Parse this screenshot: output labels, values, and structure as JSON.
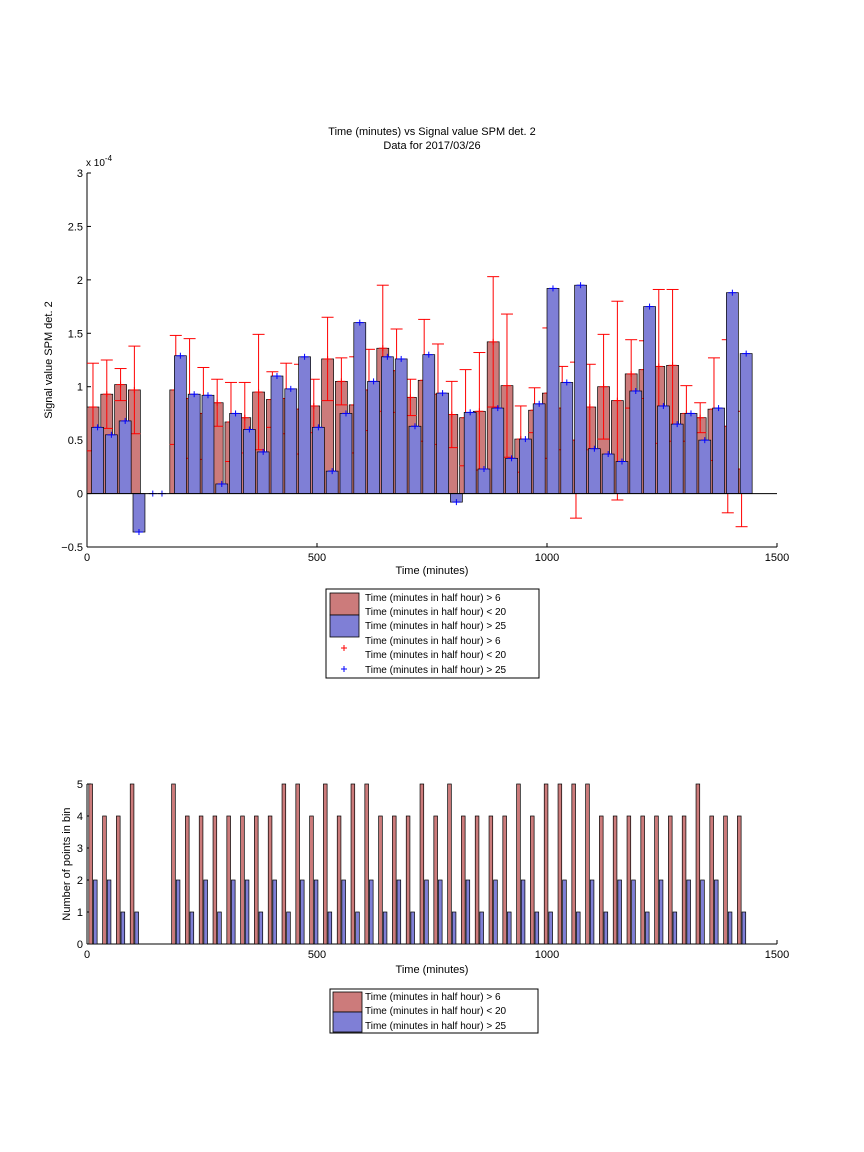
{
  "colors": {
    "red_fill": "#cc7b7b",
    "blue_fill": "#7f7fd6",
    "red_err": "#ff0000",
    "blue_err": "#0000ff",
    "axis": "#000000"
  },
  "chart_data": [
    {
      "type": "bar",
      "title": "Time (minutes) vs Signal value SPM det. 2",
      "subtitle": "Data for 2017/03/26",
      "xlabel": "Time (minutes)",
      "ylabel": "Signal value SPM det. 2",
      "exponent_label": "x 10",
      "exponent_power": "-4",
      "xlim": [
        0,
        1500
      ],
      "ylim": [
        -0.5,
        3
      ],
      "xticks": [
        0,
        500,
        1000,
        1500
      ],
      "yticks": [
        -0.5,
        0,
        0.5,
        1,
        1.5,
        2,
        2.5,
        3
      ],
      "ytick_labels": [
        "−0.5",
        "0",
        "0.5",
        "1",
        "1.5",
        "2",
        "2.5",
        "3"
      ],
      "legend_placement": "below",
      "legend": [
        "Time (minutes in half hour) > 6",
        "Time (minutes in half hour) < 20",
        "Time (minutes in half hour) > 25",
        "Time (minutes in half hour) > 6",
        "Time (minutes in half hour) < 20",
        "Time (minutes in half hour) > 25"
      ],
      "series": [
        {
          "color": "red",
          "x": [
            13,
            43,
            73,
            103,
            193,
            223,
            253,
            283,
            313,
            343,
            373,
            403,
            433,
            463,
            493,
            523,
            553,
            583,
            613,
            643,
            673,
            703,
            733,
            763,
            793,
            823,
            853,
            883,
            913,
            943,
            973,
            1003,
            1033,
            1063,
            1093,
            1123,
            1153,
            1183,
            1213,
            1243,
            1273,
            1303,
            1333,
            1363,
            1393,
            1423
          ],
          "values": [
            0.81,
            0.93,
            1.02,
            0.97,
            0.97,
            0.89,
            0.75,
            0.85,
            0.67,
            0.71,
            0.95,
            0.88,
            0.89,
            0.79,
            0.82,
            1.26,
            1.05,
            0.83,
            0.97,
            1.36,
            1.15,
            0.9,
            1.06,
            0.93,
            0.74,
            0.71,
            0.77,
            1.42,
            1.01,
            0.51,
            0.78,
            0.94,
            0.8,
            0.5,
            0.81,
            1.0,
            0.87,
            1.12,
            1.16,
            1.19,
            1.2,
            0.75,
            0.71,
            0.79,
            0.63,
            0.23
          ],
          "err": [
            0.41,
            0.32,
            0.15,
            0.41,
            0.51,
            0.56,
            0.43,
            0.22,
            0.37,
            0.33,
            0.54,
            0.26,
            0.33,
            0.42,
            0.25,
            0.39,
            0.22,
            0.45,
            0.38,
            0.59,
            0.39,
            0.17,
            0.57,
            0.47,
            0.31,
            0.45,
            0.55,
            0.61,
            0.67,
            0.31,
            0.21,
            0.61,
            0.39,
            0.73,
            0.4,
            0.49,
            0.93,
            0.32,
            0.27,
            0.72,
            0.71,
            0.26,
            0.14,
            0.48,
            0.81,
            0.54
          ]
        },
        {
          "color": "blue",
          "x": [
            23,
            53,
            83,
            113,
            143,
            163,
            203,
            233,
            263,
            293,
            323,
            353,
            383,
            413,
            443,
            473,
            503,
            533,
            563,
            593,
            623,
            653,
            683,
            713,
            743,
            773,
            803,
            833,
            863,
            893,
            923,
            953,
            983,
            1013,
            1043,
            1073,
            1103,
            1133,
            1163,
            1193,
            1223,
            1253,
            1283,
            1313,
            1343,
            1373,
            1403,
            1433
          ],
          "values": [
            0.62,
            0.55,
            0.68,
            -0.36,
            0.0,
            0.0,
            1.29,
            0.93,
            0.92,
            0.09,
            0.75,
            0.6,
            0.39,
            1.1,
            0.98,
            1.28,
            0.62,
            0.21,
            0.75,
            1.6,
            1.05,
            1.28,
            1.26,
            0.63,
            1.3,
            0.94,
            -0.08,
            0.76,
            0.23,
            0.8,
            0.33,
            0.51,
            0.84,
            1.92,
            1.04,
            1.95,
            0.42,
            0.37,
            0.3,
            0.96,
            1.75,
            0.82,
            0.65,
            0.75,
            0.5,
            0.8,
            1.88,
            1.31
          ]
        }
      ],
      "series_notes": "Each red and blue series is drawn as bars with vertical error bars (plus markers at bar tops)."
    },
    {
      "type": "bar",
      "xlabel": "Time (minutes)",
      "ylabel": "Number of points in bin",
      "xlim": [
        0,
        1500
      ],
      "ylim": [
        0,
        5
      ],
      "xticks": [
        0,
        500,
        1000,
        1500
      ],
      "yticks": [
        0,
        1,
        2,
        3,
        4,
        5
      ],
      "legend_placement": "below",
      "legend": [
        "Time (minutes in half hour) > 6",
        "Time (minutes in half hour) < 20",
        "Time (minutes in half hour) > 25"
      ],
      "series": [
        {
          "color": "red",
          "x": [
            8,
            38,
            68,
            98,
            188,
            218,
            248,
            278,
            308,
            338,
            368,
            398,
            428,
            458,
            488,
            518,
            548,
            578,
            608,
            638,
            668,
            698,
            728,
            758,
            788,
            818,
            848,
            878,
            908,
            938,
            968,
            998,
            1028,
            1058,
            1088,
            1118,
            1148,
            1178,
            1208,
            1238,
            1268,
            1298,
            1328,
            1358,
            1388,
            1418
          ],
          "values": [
            5,
            4,
            4,
            5,
            5,
            4,
            4,
            4,
            4,
            4,
            4,
            4,
            5,
            5,
            4,
            5,
            4,
            5,
            5,
            4,
            4,
            4,
            5,
            4,
            5,
            4,
            4,
            4,
            4,
            5,
            4,
            5,
            5,
            5,
            5,
            4,
            4,
            4,
            4,
            4,
            4,
            4,
            5,
            4,
            4,
            4
          ]
        },
        {
          "color": "blue",
          "x": [
            18,
            48,
            78,
            108,
            198,
            228,
            258,
            288,
            318,
            348,
            378,
            408,
            438,
            468,
            498,
            528,
            558,
            588,
            618,
            648,
            678,
            708,
            738,
            768,
            798,
            828,
            858,
            888,
            918,
            948,
            978,
            1008,
            1038,
            1068,
            1098,
            1128,
            1158,
            1188,
            1218,
            1248,
            1278,
            1308,
            1338,
            1368,
            1398,
            1428
          ],
          "values": [
            2,
            2,
            1,
            1,
            2,
            1,
            2,
            1,
            2,
            2,
            1,
            2,
            1,
            2,
            2,
            1,
            2,
            1,
            2,
            1,
            2,
            1,
            2,
            2,
            1,
            2,
            1,
            2,
            1,
            2,
            1,
            1,
            2,
            1,
            2,
            1,
            2,
            2,
            1,
            2,
            1,
            2,
            2,
            2,
            1,
            1
          ]
        }
      ]
    }
  ]
}
